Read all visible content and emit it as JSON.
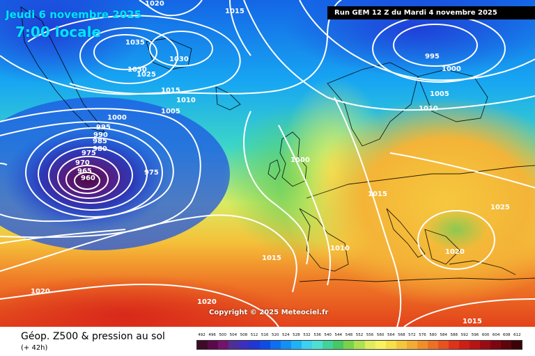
{
  "header": {
    "valid_date": "Jeudi 6 novembre 2025",
    "valid_time": "7:00 locale",
    "run_info": "Run GEM 12 Z du Mardi 4 novembre 2025"
  },
  "copyright": "Copyright © 2025 Meteociel.fr",
  "footer": {
    "title": "Géop. Z500 & pression au sol",
    "lead_time": "(+ 42h)"
  },
  "legend": {
    "values": [
      "492",
      "496",
      "500",
      "504",
      "508",
      "512",
      "516",
      "520",
      "524",
      "528",
      "532",
      "536",
      "540",
      "544",
      "548",
      "552",
      "556",
      "560",
      "564",
      "568",
      "572",
      "576",
      "580",
      "584",
      "588",
      "592",
      "596",
      "600",
      "604",
      "608",
      "612"
    ],
    "colors": [
      "#3d0a28",
      "#5a0a4a",
      "#73136b",
      "#4d2f9a",
      "#3a2fbf",
      "#2036d6",
      "#0f4be6",
      "#0d6ef2",
      "#1290f5",
      "#1eb3f7",
      "#3dd0f0",
      "#4de0d0",
      "#41d39a",
      "#46c864",
      "#7ad24a",
      "#aee052",
      "#e0ec5e",
      "#f7f25e",
      "#f6df4a",
      "#f4c63c",
      "#f2ac33",
      "#f08f2a",
      "#ed7025",
      "#e8521f",
      "#df3219",
      "#cf1e14",
      "#b81413",
      "#9c0a14",
      "#7e0610",
      "#5e040c",
      "#3b0208"
    ]
  },
  "isobar_labels": [
    "1020",
    "1015",
    "1035",
    "1030",
    "1030",
    "1025",
    "1015",
    "1010",
    "1005",
    "1000",
    "995",
    "990",
    "985",
    "980",
    "975",
    "970",
    "965",
    "960",
    "975",
    "1000",
    "1015",
    "995",
    "1000",
    "1005",
    "1010",
    "1025",
    "1015",
    "1010",
    "1020",
    "1020",
    "1020",
    "1015"
  ]
}
